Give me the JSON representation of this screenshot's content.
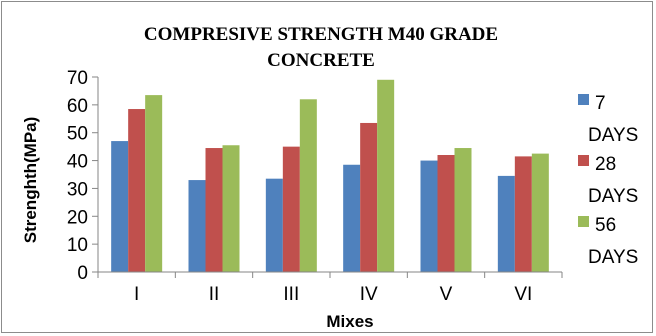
{
  "chart_data": {
    "type": "bar",
    "title": "COMPRESIVE STRENGTH M40 GRADE CONCRETE",
    "title_lines": [
      "COMPRESIVE STRENGTH M40 GRADE",
      "CONCRETE"
    ],
    "xlabel": "Mixes",
    "ylabel": "Strenghth(MPa)",
    "ylim": [
      0,
      70
    ],
    "yticks": [
      0,
      10,
      20,
      30,
      40,
      50,
      60,
      70
    ],
    "grid": false,
    "legend_position": "right",
    "categories": [
      "I",
      "II",
      "III",
      "IV",
      "V",
      "VI"
    ],
    "series": [
      {
        "name": "7 DAYS",
        "name_lines": [
          "7",
          "DAYS"
        ],
        "color": "#4f81bd",
        "values": [
          47,
          33,
          33.5,
          38.5,
          40,
          34.5
        ]
      },
      {
        "name": "28 DAYS",
        "name_lines": [
          "28",
          "DAYS"
        ],
        "color": "#c0504d",
        "values": [
          58.5,
          44.5,
          45,
          53.5,
          42,
          41.5
        ]
      },
      {
        "name": "56 DAYS",
        "name_lines": [
          "56",
          "DAYS"
        ],
        "color": "#9bbb59",
        "values": [
          63.5,
          45.5,
          62,
          69,
          44.5,
          42.5
        ]
      }
    ]
  }
}
